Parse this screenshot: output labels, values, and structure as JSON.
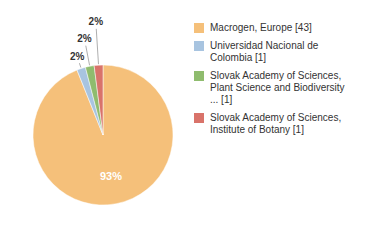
{
  "chart_data": {
    "type": "pie",
    "categories": [
      "Macrogen, Europe [43]",
      "Universidad Nacional de\nColombia [1]",
      "Slovak Academy of Sciences,\nPlant Science and Biodiversity\n... [1]",
      "Slovak Academy of Sciences,\nInstitute of Botany [1]"
    ],
    "values": [
      93,
      2,
      2,
      2
    ],
    "value_labels": [
      "93%",
      "2%",
      "2%",
      "2%"
    ],
    "colors": [
      "#f5c07a",
      "#a8c4e0",
      "#8fbc6e",
      "#d9736a"
    ],
    "data_labels": true,
    "legend": "right"
  }
}
